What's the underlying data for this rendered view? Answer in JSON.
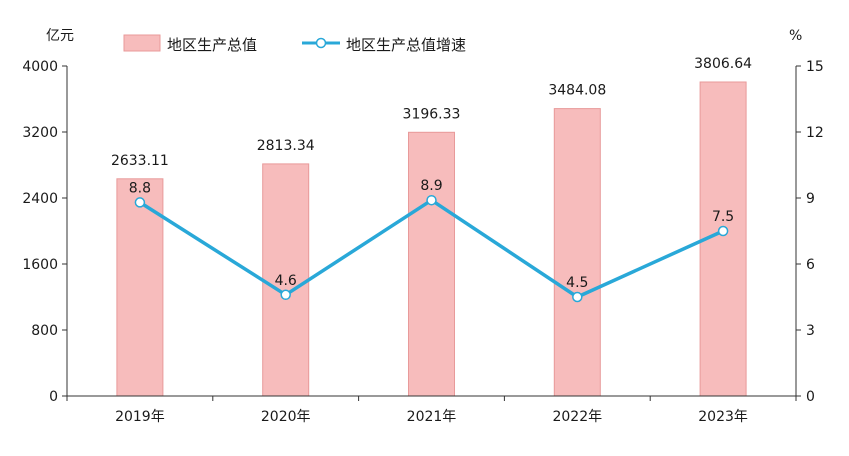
{
  "chart_data": {
    "type": "bar+line",
    "categories": [
      "2019年",
      "2020年",
      "2021年",
      "2022年",
      "2023年"
    ],
    "series": [
      {
        "name": "地区生产总值",
        "type": "bar",
        "axis": "left",
        "values": [
          2633.11,
          2813.34,
          3196.33,
          3484.08,
          3806.64
        ],
        "labels": [
          "2633.11",
          "2813.34",
          "3196.33",
          "3484.08",
          "3806.64"
        ],
        "color": "#f7bcbc",
        "stroke": "#e89a9a"
      },
      {
        "name": "地区生产总值增速",
        "type": "line",
        "axis": "right",
        "values": [
          8.8,
          4.6,
          8.9,
          4.5,
          7.5
        ],
        "labels": [
          "8.8",
          "4.6",
          "8.9",
          "4.5",
          "7.5"
        ],
        "color": "#29a8d8"
      }
    ],
    "y_left": {
      "unit": "亿元",
      "ylim": [
        0,
        4000
      ],
      "ticks": [
        0,
        800,
        1600,
        2400,
        3200,
        4000
      ],
      "tick_labels": [
        "0",
        "800",
        "1600",
        "2400",
        "3200",
        "4000"
      ]
    },
    "y_right": {
      "unit": "%",
      "ylim": [
        0,
        15
      ],
      "ticks": [
        0,
        3,
        6,
        9,
        12,
        15
      ],
      "tick_labels": [
        "0",
        "3",
        "6",
        "9",
        "12",
        "15"
      ]
    },
    "grid": false,
    "legend_position": "top-left"
  }
}
